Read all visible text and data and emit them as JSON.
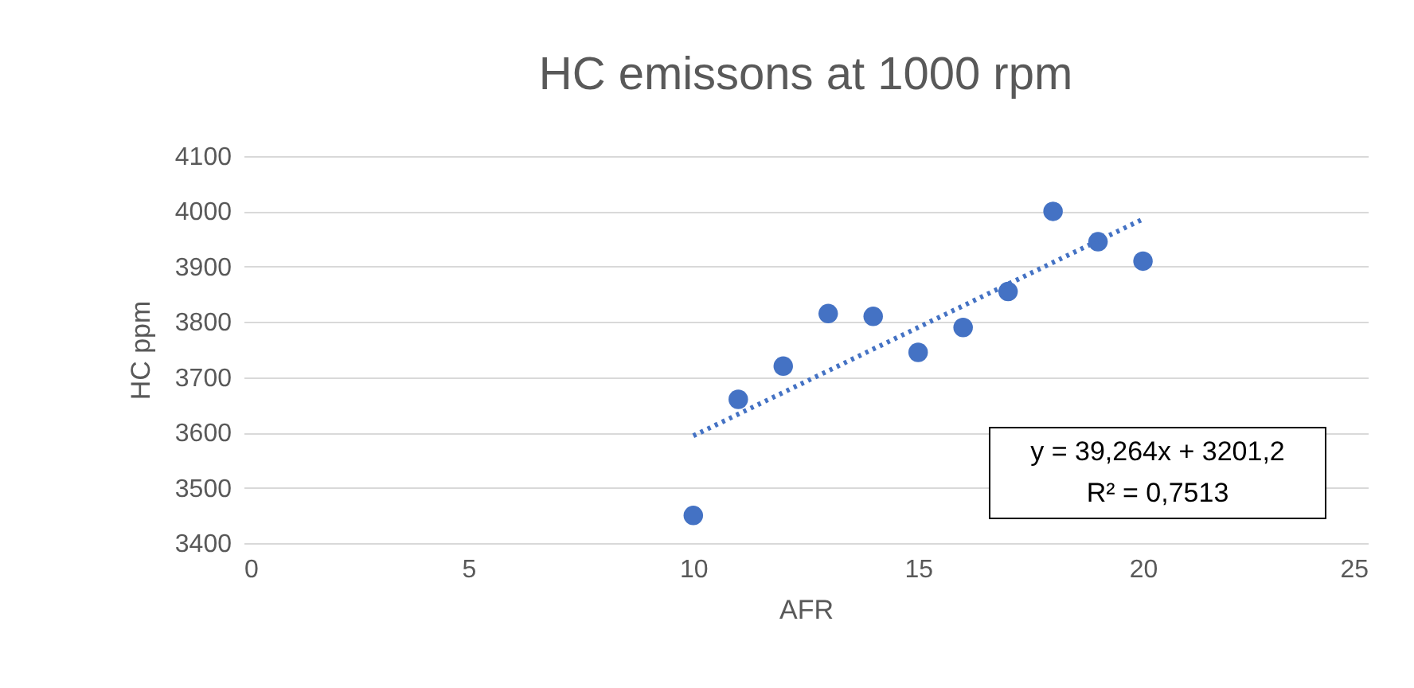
{
  "chart_data": {
    "type": "scatter",
    "title": "HC emissons at 1000 rpm",
    "xlabel": "AFR",
    "ylabel": "HC ppm",
    "x": [
      10,
      11,
      12,
      13,
      14,
      15,
      16,
      17,
      18,
      19,
      20
    ],
    "series": [
      {
        "color": "#4472c4",
        "marker": "circle",
        "values": [
          3450,
          3660,
          3720,
          3815,
          3810,
          3745,
          3790,
          3855,
          4000,
          3945,
          3910
        ]
      },
      {
        "type": "line",
        "color": "#4472c4",
        "line_style": "dotted",
        "x": [
          10,
          20
        ],
        "values": [
          3594,
          3986
        ]
      }
    ],
    "xlim": [
      0,
      25
    ],
    "xticks": [
      0,
      5,
      10,
      15,
      20,
      25
    ],
    "ylim": [
      3400,
      4100
    ],
    "yticks": [
      3400,
      3500,
      3600,
      3700,
      3800,
      3900,
      4000,
      4100
    ],
    "grid": "y",
    "annotations": [
      "y = 39,264x + 3201,2",
      "R² = 0,7513"
    ]
  }
}
